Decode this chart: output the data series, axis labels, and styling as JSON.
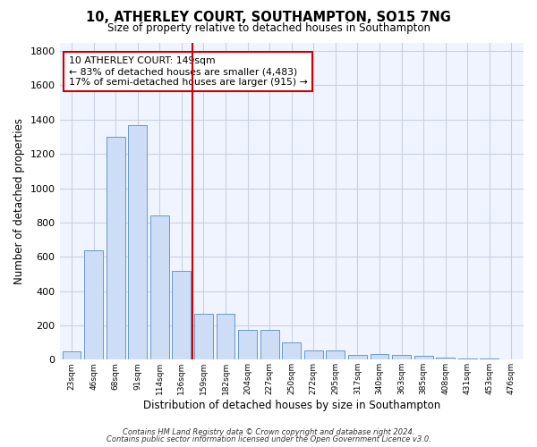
{
  "title_line1": "10, ATHERLEY COURT, SOUTHAMPTON, SO15 7NG",
  "title_line2": "Size of property relative to detached houses in Southampton",
  "xlabel": "Distribution of detached houses by size in Southampton",
  "ylabel": "Number of detached properties",
  "categories": [
    "23sqm",
    "46sqm",
    "68sqm",
    "91sqm",
    "114sqm",
    "136sqm",
    "159sqm",
    "182sqm",
    "204sqm",
    "227sqm",
    "250sqm",
    "272sqm",
    "295sqm",
    "317sqm",
    "340sqm",
    "363sqm",
    "385sqm",
    "408sqm",
    "431sqm",
    "453sqm",
    "476sqm"
  ],
  "values": [
    50,
    640,
    1300,
    1370,
    840,
    520,
    270,
    270,
    175,
    175,
    100,
    55,
    55,
    30,
    35,
    30,
    20,
    10,
    5,
    5,
    3
  ],
  "bar_color": "#ccddf5",
  "bar_edge_color": "#6699cc",
  "annotation_line1": "10 ATHERLEY COURT: 149sqm",
  "annotation_line2": "← 83% of detached houses are smaller (4,483)",
  "annotation_line3": "17% of semi-detached houses are larger (915) →",
  "vline_color": "#cc0000",
  "vline_category_index": 6,
  "annotation_box_color": "#ffffff",
  "annotation_box_edge_color": "#cc0000",
  "ylim": [
    0,
    1850
  ],
  "yticks": [
    0,
    200,
    400,
    600,
    800,
    1000,
    1200,
    1400,
    1600,
    1800
  ],
  "footer_line1": "Contains HM Land Registry data © Crown copyright and database right 2024.",
  "footer_line2": "Contains public sector information licensed under the Open Government Licence v3.0.",
  "background_color": "#ffffff",
  "plot_bg_color": "#f0f4ff",
  "grid_color": "#c8d0e0"
}
